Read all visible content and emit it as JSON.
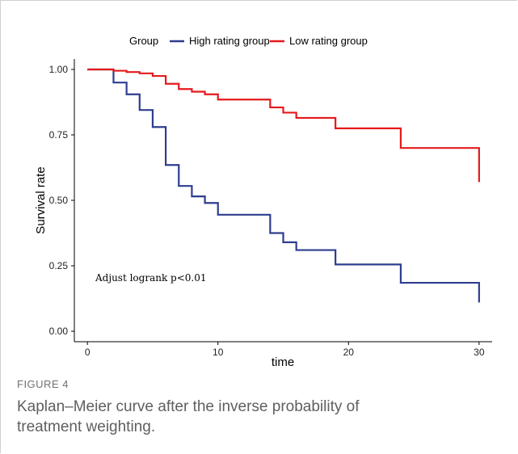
{
  "figure": {
    "label": "FIGURE 4",
    "caption": "Kaplan–Meier curve after the inverse probability of treatment weighting."
  },
  "chart_data": {
    "type": "line",
    "step": true,
    "xlabel": "time",
    "ylabel": "Survival rate",
    "xlim": [
      -1,
      31
    ],
    "ylim": [
      -0.04,
      1.04
    ],
    "x_ticks": [
      0,
      10,
      20,
      30
    ],
    "y_ticks": [
      0.0,
      0.25,
      0.5,
      0.75,
      1.0
    ],
    "y_tick_labels": [
      "0.00",
      "0.25",
      "0.50",
      "0.75",
      "1.00"
    ],
    "grid": false,
    "legend": {
      "title": "Group",
      "position": "top",
      "entries": [
        "High rating group",
        "Low rating group"
      ]
    },
    "annotation": "Adjust logrank p<0.01",
    "series": [
      {
        "name": "High rating group",
        "color": "#2e3d8f",
        "points": [
          [
            0,
            1.0
          ],
          [
            2,
            0.95
          ],
          [
            3,
            0.905
          ],
          [
            4,
            0.845
          ],
          [
            5,
            0.78
          ],
          [
            6,
            0.635
          ],
          [
            7,
            0.555
          ],
          [
            8,
            0.515
          ],
          [
            9,
            0.49
          ],
          [
            10,
            0.445
          ],
          [
            14,
            0.375
          ],
          [
            15,
            0.34
          ],
          [
            16,
            0.31
          ],
          [
            19,
            0.255
          ],
          [
            24,
            0.185
          ],
          [
            30,
            0.11
          ]
        ]
      },
      {
        "name": "Low rating group",
        "color": "#e41a1c",
        "points": [
          [
            0,
            1.0
          ],
          [
            2,
            0.995
          ],
          [
            3,
            0.99
          ],
          [
            4,
            0.985
          ],
          [
            5,
            0.975
          ],
          [
            6,
            0.945
          ],
          [
            7,
            0.925
          ],
          [
            8,
            0.915
          ],
          [
            9,
            0.905
          ],
          [
            10,
            0.885
          ],
          [
            14,
            0.855
          ],
          [
            15,
            0.835
          ],
          [
            16,
            0.815
          ],
          [
            19,
            0.775
          ],
          [
            24,
            0.7
          ],
          [
            30,
            0.57
          ]
        ]
      }
    ]
  }
}
